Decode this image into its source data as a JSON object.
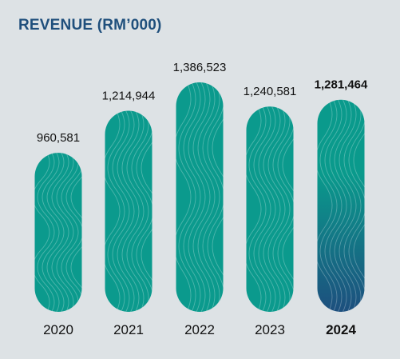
{
  "chart_data": {
    "type": "bar",
    "title": "REVENUE (RM’000)",
    "categories": [
      "2020",
      "2021",
      "2022",
      "2023",
      "2024"
    ],
    "values": [
      960581,
      1214944,
      1386523,
      1240581,
      1281464
    ],
    "data_labels": [
      "960,581",
      "1,214,944",
      "1,386,523",
      "1,240,581",
      "1,281,464"
    ],
    "highlight_category": "2024",
    "xlabel": "",
    "ylabel": "",
    "ylim": [
      0,
      1386523
    ],
    "grid": false
  },
  "colors": {
    "background": "#dde2e5",
    "title": "#1f4f7c",
    "bar_teal": "#0b9a8d",
    "bar_highlight_top": "#0a9a8c",
    "bar_highlight_bottom": "#1d4f7e",
    "label_text": "#111111"
  }
}
